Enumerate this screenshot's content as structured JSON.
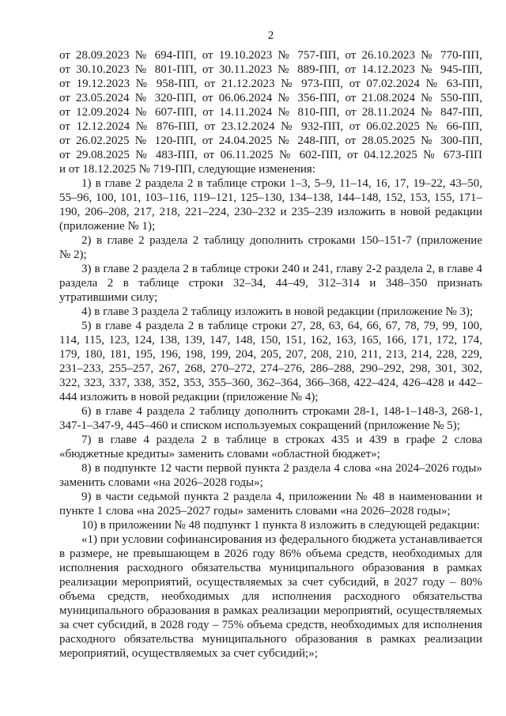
{
  "colors": {
    "background": "#ffffff",
    "text": "#1a1a1a"
  },
  "doc": {
    "page_number": "2",
    "amendment_ref_lines": [
      "от 28.09.2023 № 694-ПП, от 19.10.2023 № 757-ПП, от 26.10.2023 № 770-ПП,",
      "от 30.10.2023 № 801-ПП, от 30.11.2023 № 889-ПП, от 14.12.2023 № 945-ПП,",
      "от 19.12.2023 № 958-ПП, от 21.12.2023 № 973-ПП, от 07.02.2024 № 63-ПП,",
      "от 23.05.2024 № 320-ПП, от 06.06.2024 № 356-ПП, от 21.08.2024 № 550-ПП,",
      "от 12.09.2024 № 607-ПП, от 14.11.2024 № 810-ПП, от 28.11.2024 № 847-ПП,",
      "от 12.12.2024 № 876-ПП, от 23.12.2024 № 932-ПП, от 06.02.2025 № 66-ПП,",
      "от 26.02.2025 № 120-ПП, от 24.04.2025 № 248-ПП, от 28.05.2025 № 300-ПП,",
      "от 29.08.2025 № 483-ПП, от 06.11.2025 № 602-ПП, от 04.12.2025 № 673-ПП",
      "и от 18.12.2025 № 719-ПП, следующие изменения:"
    ],
    "paragraphs": [
      "1) в главе 2 раздела 2 в таблице строки 1–3, 5–9, 11–14, 16, 17, 19–22, 43–50, 55–96, 100, 101, 103–116, 119–121, 125–130, 134–138, 144–148, 152, 153, 155, 171–190, 206–208, 217, 218, 221–224, 230–232 и 235–239 изложить в новой редакции (приложение № 1);",
      "2) в главе 2 раздела 2 таблицу дополнить строками 150–151-7 (приложение № 2);",
      "3) в главе 2 раздела 2 в таблице строки 240 и 241, главу 2-2 раздела 2, в главе 4 раздела 2 в таблице строки 32–34, 44–49, 312–314 и 348–350 признать утратившими силу;",
      "4) в главе 3 раздела 2 таблицу изложить в новой редакции (приложение № 3);",
      "5) в главе 4 раздела 2 в таблице строки 27, 28, 63, 64, 66, 67, 78, 79, 99, 100, 114, 115, 123, 124, 138, 139, 147, 148, 150, 151, 162, 163, 165, 166, 171, 172, 174, 179, 180, 181, 195, 196, 198, 199, 204, 205, 207, 208, 210, 211, 213, 214, 228, 229, 231–233, 255–257, 267, 268, 270–272, 274–276, 286–288, 290–292, 298, 301, 302, 322, 323, 337, 338, 352, 353, 355–360, 362–364, 366–368, 422–424, 426–428 и 442–444 изложить в новой редакции (приложение № 4);",
      "6) в главе 4 раздела 2 таблицу дополнить строками 28-1, 148-1–148-3, 268-1, 347-1–347-9, 445–460 и списком используемых сокращений (приложение № 5);",
      "7) в главе 4 раздела 2 в таблице в строках 435 и 439 в графе 2 слова «бюджетные кредиты» заменить словами «областной бюджет»;",
      "8) в подпункте 12 части первой пункта 2 раздела 4 слова «на 2024–2026 годы» заменить словами «на 2026–2028 годы»;",
      "9) в части седьмой пункта 2 раздела 4, приложении № 48 в наименовании и пункте 1 слова «на 2025–2027 годы» заменить словами «на 2026–2028 годы»;",
      "10) в приложении № 48 подпункт 1 пункта 8 изложить в следующей редакции:",
      "«1) при условии софинансирования из федерального бюджета устанавливается в размере, не превышающем в 2026 году 86% объема средств, необходимых для исполнения расходного обязательства муниципального образования в рамках реализации мероприятий, осуществляемых за счет субсидий, в 2027 году – 80% объема средств, необходимых для исполнения расходного обязательства муниципального образования в рамках реализации мероприятий, осуществляемых за счет субсидий, в 2028 году – 75% объема средств, необходимых для исполнения расходного обязательства муниципального образования в рамках реализации мероприятий, осуществляемых за счет субсидий;»;"
    ]
  }
}
